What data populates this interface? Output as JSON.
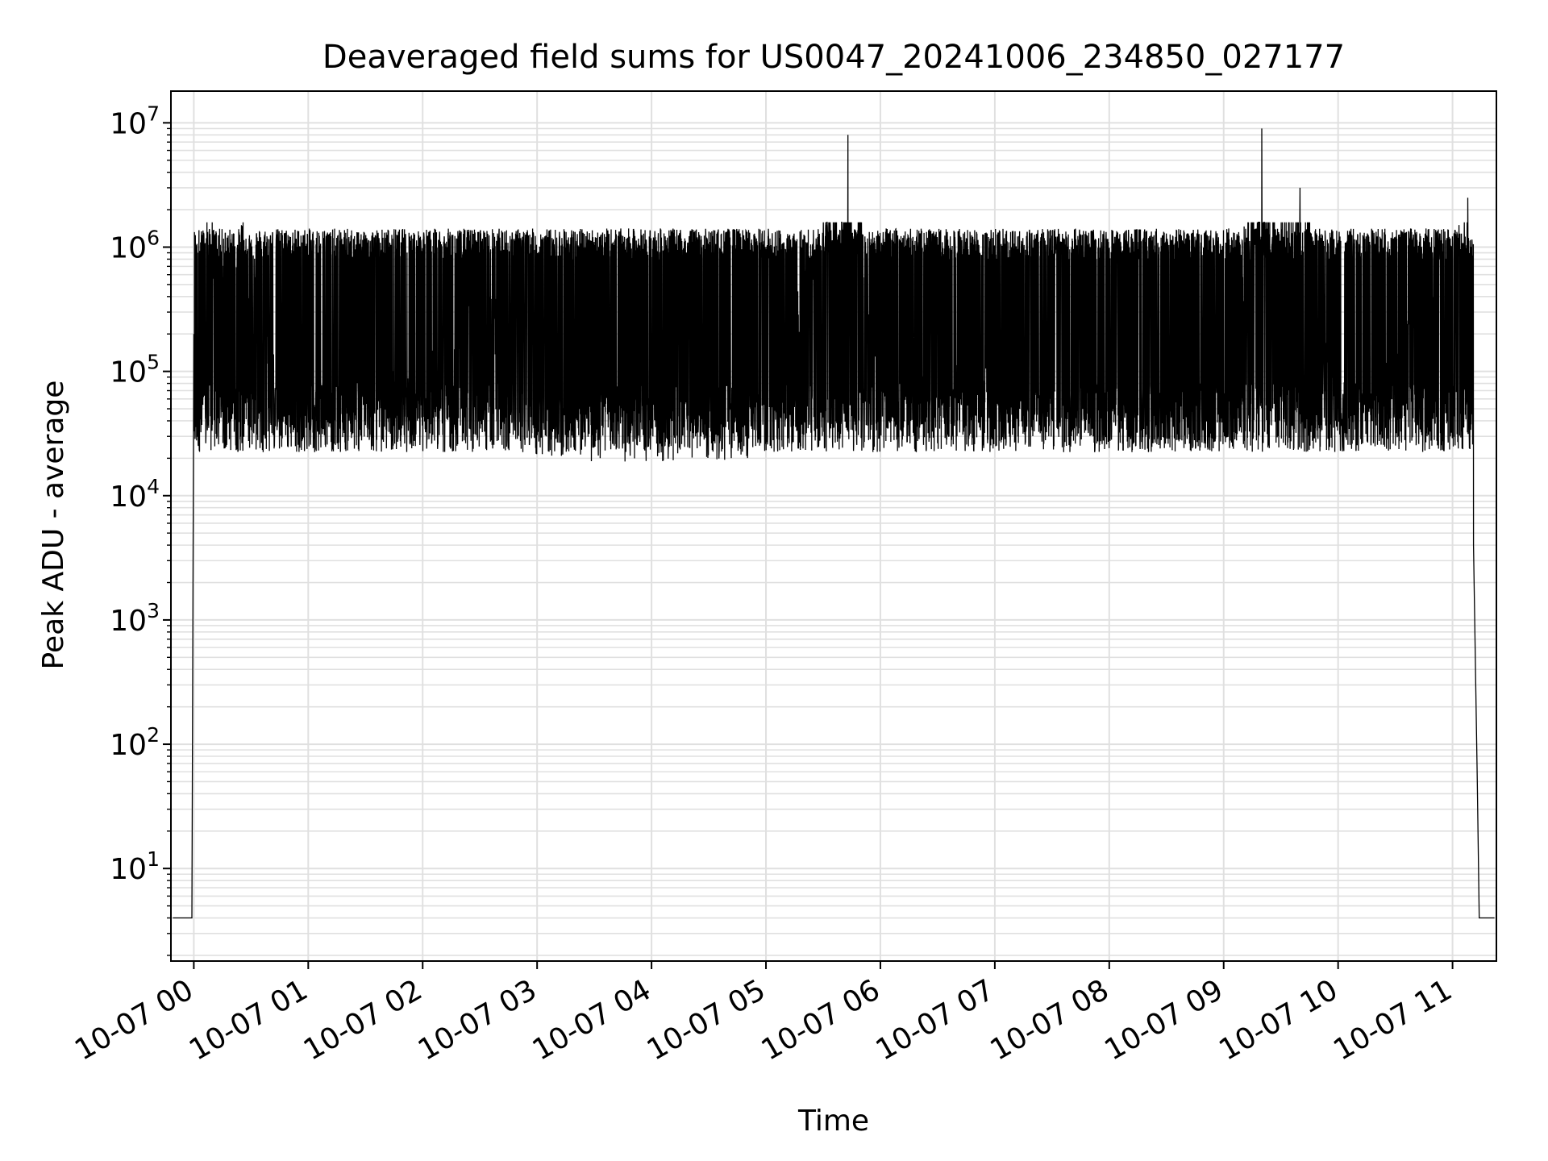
{
  "chart_data": {
    "type": "line",
    "title": "Deaveraged field sums for US0047_20241006_234850_027177",
    "xlabel": "Time",
    "ylabel": "Peak ADU - average",
    "yscale": "log",
    "xlim": [
      "2024-10-06 23:48",
      "2024-10-07 11:23"
    ],
    "ylim": [
      1.8,
      18000000
    ],
    "grid": true,
    "grid_minor": true,
    "line_color": "#000000",
    "grid_color": "#e0e0e0",
    "x_ticks": [
      {
        "t": "2024-10-07 00:00",
        "label": "10-07 00"
      },
      {
        "t": "2024-10-07 01:00",
        "label": "10-07 01"
      },
      {
        "t": "2024-10-07 02:00",
        "label": "10-07 02"
      },
      {
        "t": "2024-10-07 03:00",
        "label": "10-07 03"
      },
      {
        "t": "2024-10-07 04:00",
        "label": "10-07 04"
      },
      {
        "t": "2024-10-07 05:00",
        "label": "10-07 05"
      },
      {
        "t": "2024-10-07 06:00",
        "label": "10-07 06"
      },
      {
        "t": "2024-10-07 07:00",
        "label": "10-07 07"
      },
      {
        "t": "2024-10-07 08:00",
        "label": "10-07 08"
      },
      {
        "t": "2024-10-07 09:00",
        "label": "10-07 09"
      },
      {
        "t": "2024-10-07 10:00",
        "label": "10-07 10"
      },
      {
        "t": "2024-10-07 11:00",
        "label": "10-07 11"
      }
    ],
    "y_ticks": [
      {
        "value": 10,
        "base": "10",
        "exp": "1"
      },
      {
        "value": 100,
        "base": "10",
        "exp": "2"
      },
      {
        "value": 1000,
        "base": "10",
        "exp": "3"
      },
      {
        "value": 10000,
        "base": "10",
        "exp": "4"
      },
      {
        "value": 100000,
        "base": "10",
        "exp": "5"
      },
      {
        "value": 1000000,
        "base": "10",
        "exp": "6"
      },
      {
        "value": 10000000,
        "base": "10",
        "exp": "7"
      }
    ],
    "series": [
      {
        "points": [
          [
            "2024-10-06 23:49",
            4
          ],
          [
            "2024-10-06 23:59",
            4
          ],
          [
            "2024-10-07 00:00",
            200000
          ],
          [
            "2024-10-07 00:02",
            900000
          ],
          [
            "2024-10-07 00:05",
            1300000
          ],
          [
            "2024-10-07 00:10",
            1100000
          ],
          [
            "2024-10-07 00:14",
            500000
          ],
          [
            "2024-10-07 00:20",
            350000
          ],
          [
            "2024-10-07 00:25",
            1500000
          ],
          [
            "2024-10-07 00:30",
            150000
          ],
          [
            "2024-10-07 00:35",
            1200000
          ],
          [
            "2024-10-07 00:40",
            90000
          ],
          [
            "2024-10-07 00:45",
            50000
          ],
          [
            "2024-10-07 00:50",
            60000
          ],
          [
            "2024-10-07 01:00",
            50000
          ],
          [
            "2024-10-07 02:00",
            55000
          ],
          [
            "2024-10-07 02:30",
            500000
          ],
          [
            "2024-10-07 03:00",
            40000
          ],
          [
            "2024-10-07 04:00",
            35000
          ],
          [
            "2024-10-07 05:00",
            40000
          ],
          [
            "2024-10-07 05:43",
            8000000
          ],
          [
            "2024-10-07 06:00",
            60000
          ],
          [
            "2024-10-07 07:00",
            55000
          ],
          [
            "2024-10-07 08:00",
            45000
          ],
          [
            "2024-10-07 09:00",
            50000
          ],
          [
            "2024-10-07 09:20",
            9000000
          ],
          [
            "2024-10-07 09:30",
            1000000
          ],
          [
            "2024-10-07 09:40",
            3000000
          ],
          [
            "2024-10-07 10:00",
            50000
          ],
          [
            "2024-10-07 10:30",
            80000
          ],
          [
            "2024-10-07 11:00",
            800000
          ],
          [
            "2024-10-07 11:08",
            2500000
          ],
          [
            "2024-10-07 11:10",
            800000
          ],
          [
            "2024-10-07 11:11",
            4000
          ],
          [
            "2024-10-07 11:13",
            50
          ],
          [
            "2024-10-07 11:14",
            4
          ],
          [
            "2024-10-07 11:22",
            4
          ]
        ]
      }
    ]
  }
}
